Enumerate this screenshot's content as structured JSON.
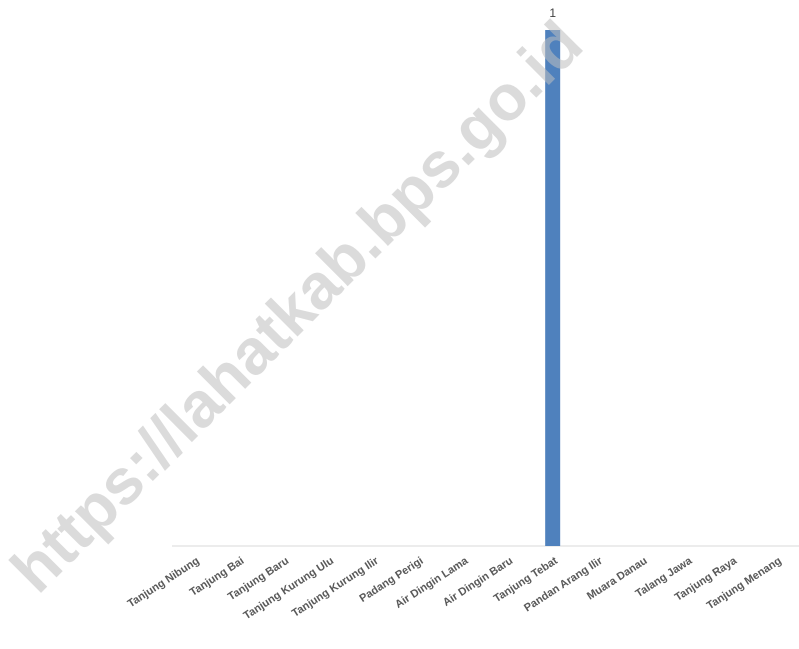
{
  "chart_data": {
    "type": "bar",
    "watermark": "https://lahatkab.bps.go.id",
    "categories": [
      "Tanjung Nibung",
      "Tanjung Bai",
      "Tanjung Baru",
      "Tanjung Kurung Ulu",
      "Tanjung Kurung Ilir",
      "Padang Perigi",
      "Air Dingin Lama",
      "Air Dingin Baru",
      "Tanjung Tebat",
      "Pandan Arang Ilir",
      "Muara Danau",
      "Talang Jawa",
      "Tanjung Raya",
      "Tanjung Menang"
    ],
    "values": [
      0,
      0,
      0,
      0,
      0,
      0,
      0,
      0,
      1,
      0,
      0,
      0,
      0,
      0
    ],
    "value_labels": [
      null,
      null,
      null,
      null,
      null,
      null,
      null,
      null,
      "1",
      null,
      null,
      null,
      null,
      null
    ],
    "color": "#4f81bd",
    "ylim": [
      0,
      1
    ]
  }
}
